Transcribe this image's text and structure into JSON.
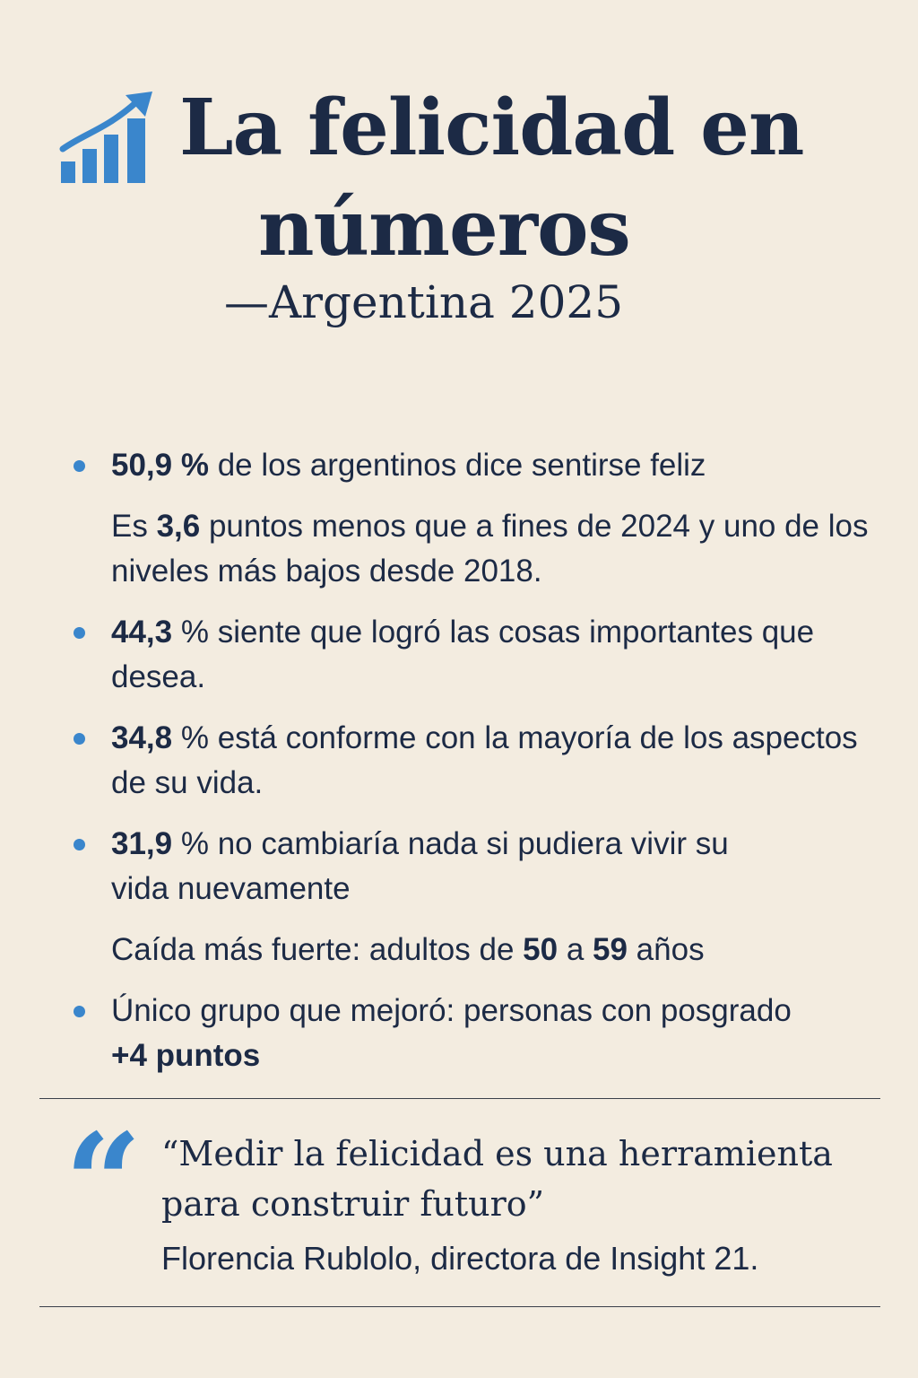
{
  "header": {
    "title_line1": "La felicidad en",
    "title_line2": "números",
    "subtitle": "—Argentina 2025",
    "icon": "chart-trend-up-icon"
  },
  "items": [
    {
      "bullet": true,
      "value": "50,9 %",
      "text": " de los argentinos dice sentirse feliz"
    },
    {
      "bullet": false,
      "pre": "Es ",
      "value": "3,6",
      "text": " puntos menos que a fines de 2024 y uno de los niveles más bajos desde 2018."
    },
    {
      "bullet": true,
      "value": "44,3",
      "text": " % siente que logró las cosas importantes que desea."
    },
    {
      "bullet": true,
      "value": "34,8",
      "text": " % está conforme con la mayoría de los aspectos de su vida."
    },
    {
      "bullet": true,
      "value": "31,9",
      "text": " % no cambiaría nada si pudiera vivir su vida nuevamente"
    },
    {
      "bullet": false,
      "pre": "Caída más fuerte: adultos de ",
      "value": "50",
      "mid": " a ",
      "value2": "59",
      "text": " años"
    },
    {
      "bullet": true,
      "text": "Único grupo que mejoró: personas con posgrado",
      "value": "+4 puntos"
    }
  ],
  "quote": {
    "mark": "“",
    "text": "“Medir la felicidad es una herramienta para construir futuro”",
    "author": "Florencia Rublolo, directora de Insight 21."
  },
  "colors": {
    "background": "#f3ece0",
    "text": "#1c2a45",
    "accent": "#3a86cc"
  }
}
